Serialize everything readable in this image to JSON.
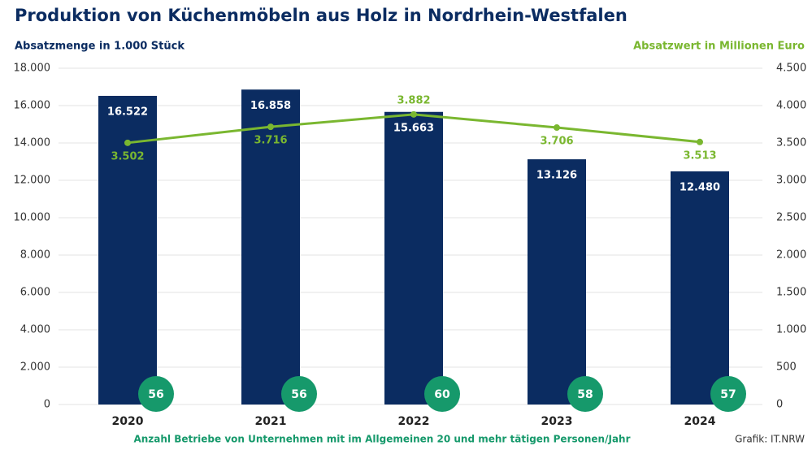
{
  "chart_data": {
    "type": "bar_line",
    "title": "Produktion von Küchenmöbeln aus Holz in Nordrhein-Westfalen",
    "y_label": "Absatzmenge in 1.000 Stück",
    "y2_label": "Absatzwert in Millionen Euro",
    "categories": [
      "2020",
      "2021",
      "2022",
      "2023",
      "2024"
    ],
    "series": [
      {
        "type": "bar",
        "color": "#0b2c61",
        "values": [
          16522,
          16858,
          15663,
          13126,
          12480
        ],
        "value_labels": [
          "16.522",
          "16.858",
          "15.663",
          "13.126",
          "12.480"
        ]
      },
      {
        "type": "line",
        "axis": "y2",
        "color": "#7ab730",
        "values": [
          3502,
          3716,
          3882,
          3706,
          3513
        ],
        "value_labels": [
          "3.502",
          "3.716",
          "3.882",
          "3.706",
          "3.513"
        ]
      }
    ],
    "establishments": {
      "name": "Anzahl Betriebe von Unternehmen mit im Allgemeinen 20 und mehr tätigen Personen/Jahr",
      "color": "#16996b",
      "values": [
        56,
        56,
        60,
        58,
        57
      ]
    },
    "ylim": [
      0,
      18000
    ],
    "yticks": [
      0,
      {
        "value": 2000,
        "label": "2.000"
      },
      {
        "value": 4000,
        "label": "4.000"
      },
      {
        "value": 6000,
        "label": "6.000"
      },
      {
        "value": 8000,
        "label": "8.000"
      },
      {
        "value": 10000,
        "label": "10.000"
      },
      {
        "value": 12000,
        "label": "12.000"
      },
      {
        "value": 14000,
        "label": "14.000"
      },
      {
        "value": 16000,
        "label": "16.000"
      },
      {
        "value": 18000,
        "label": "18.000"
      }
    ],
    "y2lim": [
      0,
      4500
    ],
    "y2ticks": [
      0,
      500,
      {
        "value": 1000,
        "label": "1.000"
      },
      {
        "value": 1500,
        "label": "1.500"
      },
      {
        "value": 2000,
        "label": "2.000"
      },
      {
        "value": 2500,
        "label": "2.500"
      },
      {
        "value": 3000,
        "label": "3.000"
      },
      {
        "value": 3500,
        "label": "3.500"
      },
      {
        "value": 4000,
        "label": "4.000"
      },
      {
        "value": 4500,
        "label": "4.500"
      }
    ],
    "grid": true,
    "source": "Grafik: IT.NRW"
  }
}
